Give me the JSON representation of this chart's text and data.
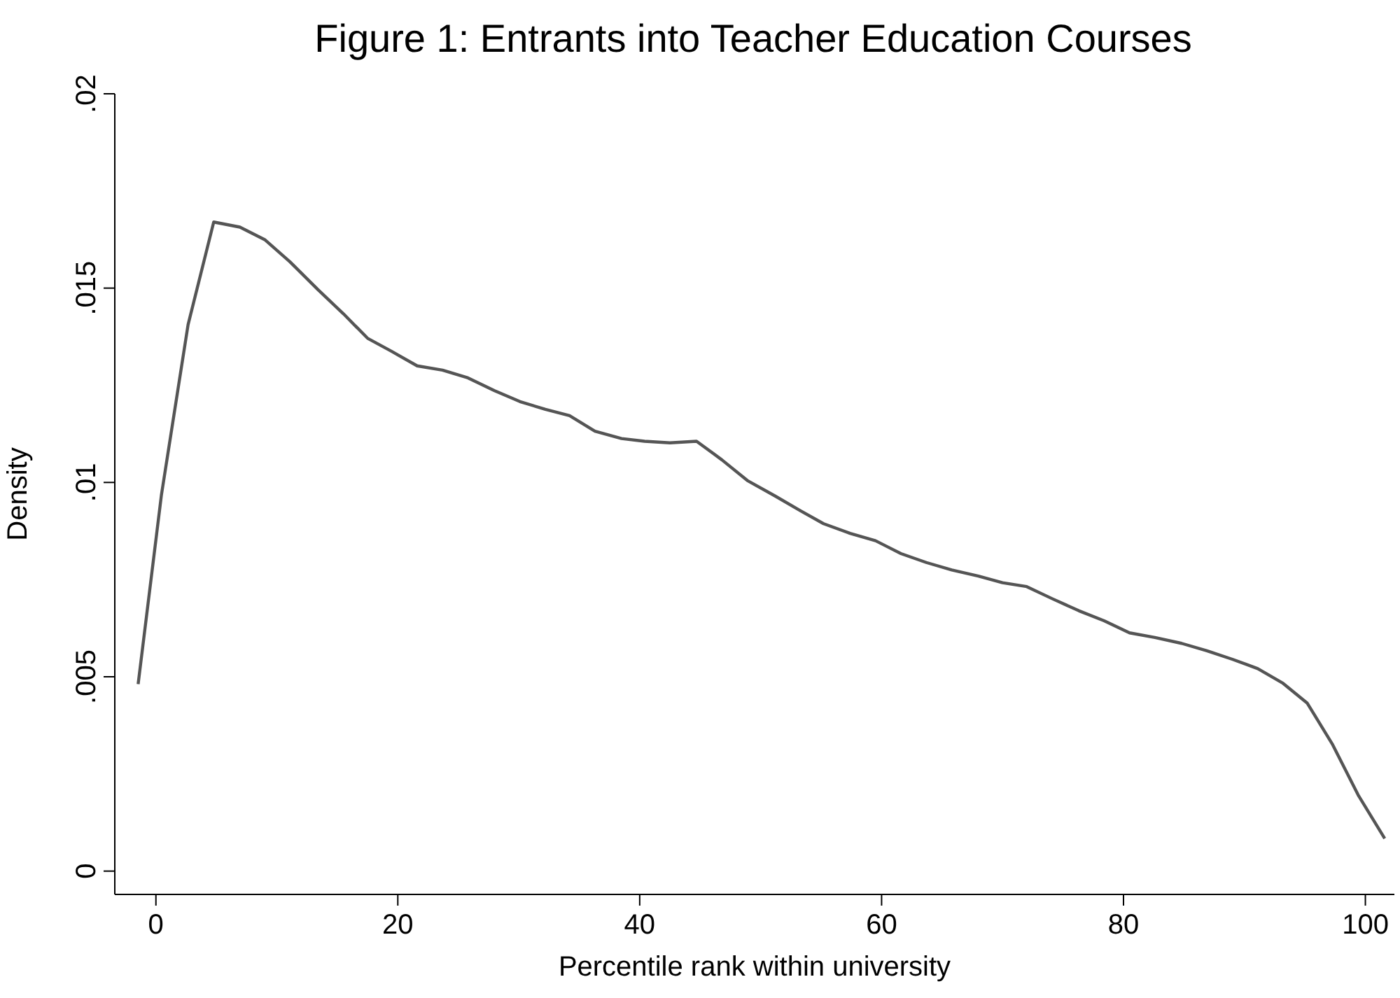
{
  "chart_data": {
    "type": "line",
    "title": "Figure 1: Entrants into Teacher Education Courses",
    "xlabel": "Percentile rank within university",
    "ylabel": "Density",
    "x": [
      -1.47,
      0.46,
      2.66,
      4.78,
      6.94,
      9.03,
      11.07,
      13.4,
      15.5,
      17.5,
      19.5,
      21.6,
      23.7,
      25.8,
      28.0,
      30.1,
      32.2,
      34.2,
      36.3,
      38.5,
      40.4,
      42.5,
      44.7,
      46.8,
      48.9,
      51.2,
      53.3,
      55.2,
      57.4,
      59.5,
      61.6,
      63.7,
      65.8,
      68.0,
      70.0,
      72.0,
      74.1,
      76.3,
      78.4,
      80.5,
      82.6,
      84.8,
      86.9,
      89.0,
      91.1,
      93.2,
      95.2,
      97.3,
      99.4,
      101.6
    ],
    "series": [
      {
        "color": "#555555",
        "values": [
          0.00481,
          0.00969,
          0.01406,
          0.0167,
          0.01657,
          0.01624,
          0.01568,
          0.01496,
          0.01434,
          0.01371,
          0.01337,
          0.013,
          0.01289,
          0.01269,
          0.01236,
          0.01208,
          0.01188,
          0.01172,
          0.01132,
          0.01113,
          0.01106,
          0.01102,
          0.01106,
          0.01058,
          0.01005,
          0.00965,
          0.00927,
          0.00894,
          0.00869,
          0.0085,
          0.00817,
          0.00794,
          0.00775,
          0.00759,
          0.00742,
          0.00732,
          0.00701,
          0.0067,
          0.00644,
          0.00613,
          0.00601,
          0.00586,
          0.00567,
          0.00545,
          0.00521,
          0.00483,
          0.00432,
          0.00325,
          0.00196,
          0.00084
        ]
      }
    ],
    "xlim": [
      -3.4,
      102.4
    ],
    "ylim": [
      -0.0006,
      0.02
    ],
    "xticks": [
      0,
      20,
      40,
      60,
      80,
      100
    ],
    "yticks": [
      0,
      {
        "value": 0.005,
        "label": ".005"
      },
      {
        "value": 0.01,
        "label": ".01"
      },
      {
        "value": 0.015,
        "label": ".015"
      },
      {
        "value": 0.02,
        "label": ".02"
      }
    ],
    "grid": false,
    "legend": false,
    "marker": "none",
    "line_style": "solid"
  }
}
